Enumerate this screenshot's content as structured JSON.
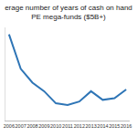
{
  "chart_data": {
    "type": "line",
    "title": "erage number of years of cash on hand",
    "subtitle": "PE mega-funds ($5B+)",
    "categories": [
      "2006",
      "2007",
      "2008",
      "2009",
      "2010",
      "2011",
      "2012",
      "2013",
      "2014",
      "2015",
      "2016"
    ],
    "values": [
      3.0,
      2.0,
      1.6,
      1.35,
      1.0,
      0.95,
      1.05,
      1.35,
      1.1,
      1.15,
      1.4
    ],
    "color": "#2e75b6",
    "ylim": [
      0.5,
      3.2
    ],
    "grid": false,
    "tick_labels": "x"
  }
}
